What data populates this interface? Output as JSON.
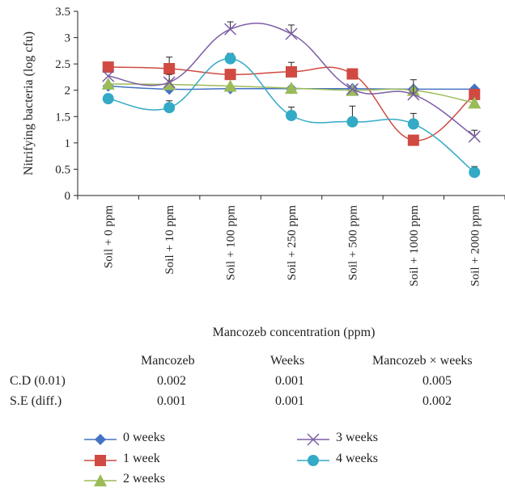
{
  "chart_data": {
    "type": "line",
    "xlabel": "Mancozeb concentration (ppm)",
    "ylabel": "Nitrifying bacteria (log cfu)",
    "ylim": [
      0,
      3.5
    ],
    "yticks": [
      "0",
      "0.5",
      "1",
      "1.5",
      "2",
      "2.5",
      "3",
      "3.5"
    ],
    "categories": [
      "Soil + 0 ppm",
      "Soil + 10 ppm",
      "Soil + 100 ppm",
      "Soil + 250 ppm",
      "Soil + 500 ppm",
      "Soil + 1000 ppm",
      "Soil + 2000 ppm"
    ],
    "series": [
      {
        "name": "0 weeks",
        "color": "#4472C4",
        "marker": "diamond",
        "values": [
          2.08,
          2.02,
          2.03,
          2.03,
          2.03,
          2.02,
          2.02
        ],
        "err": [
          0,
          0,
          0,
          0,
          0,
          0,
          0
        ]
      },
      {
        "name": "1 week",
        "color": "#D04A42",
        "marker": "square",
        "values": [
          2.44,
          2.41,
          2.3,
          2.35,
          2.31,
          1.05,
          1.92
        ],
        "err": [
          0,
          0.22,
          0,
          0.18,
          0.1,
          0,
          0
        ]
      },
      {
        "name": "2 weeks",
        "color": "#9BBB59",
        "marker": "triangle",
        "values": [
          2.12,
          2.11,
          2.08,
          2.04,
          2.0,
          2.0,
          1.76
        ],
        "err": [
          0,
          0,
          0,
          0,
          0,
          0,
          0
        ]
      },
      {
        "name": "3 weeks",
        "color": "#7C5EA6",
        "marker": "x",
        "values": [
          2.27,
          2.15,
          3.16,
          3.07,
          2.02,
          1.92,
          1.12
        ],
        "err": [
          0,
          0.15,
          0.14,
          0.17,
          0,
          0.28,
          0.12
        ]
      },
      {
        "name": "4 weeks",
        "color": "#33AAC6",
        "marker": "circle",
        "values": [
          1.84,
          1.67,
          2.6,
          1.52,
          1.4,
          1.36,
          0.44
        ],
        "err": [
          0,
          0.13,
          0.1,
          0.16,
          0.3,
          0.2,
          0.11
        ]
      }
    ],
    "stats_table": {
      "headers": [
        "Mancozeb",
        "Weeks",
        "Mancozeb × weeks"
      ],
      "rows": [
        {
          "label": "C.D (0.01)",
          "values": [
            "0.002",
            "0.001",
            "0.005"
          ]
        },
        {
          "label": "S.E (diff.)",
          "values": [
            "0.001",
            "0.001",
            "0.002"
          ]
        }
      ]
    }
  }
}
